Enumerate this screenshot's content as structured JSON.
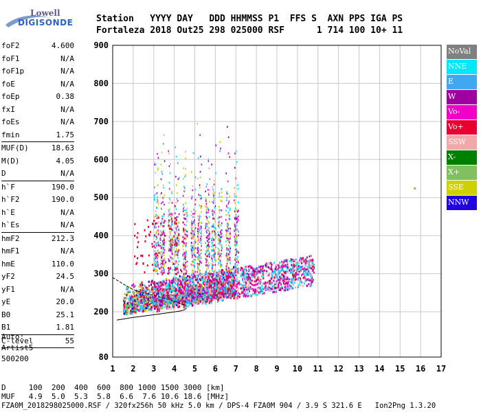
{
  "logo": {
    "line1": "Lowell",
    "line2": "DIGISONDE"
  },
  "header": {
    "row1": "Station   YYYY DAY   DDD HHMMSS P1  FFS S  AXN PPS IGA PS",
    "row2": "Fortaleza 2018 Out25 298 025000 RSF      1 714 100 10+ 11"
  },
  "params": [
    {
      "label": "foF2",
      "value": "4.600"
    },
    {
      "label": "foF1",
      "value": "N/A"
    },
    {
      "label": "foF1p",
      "value": "N/A"
    },
    {
      "label": "foE",
      "value": "N/A"
    },
    {
      "label": "foEp",
      "value": "0.38"
    },
    {
      "label": "fxI",
      "value": "N/A"
    },
    {
      "label": "foEs",
      "value": "N/A"
    },
    {
      "label": "fmin",
      "value": "1.75",
      "sep": true
    },
    {
      "label": "MUF(D)",
      "value": "18.63"
    },
    {
      "label": "M(D)",
      "value": "4.05"
    },
    {
      "label": "D",
      "value": "N/A",
      "sep": true
    },
    {
      "label": "h`F",
      "value": "190.0"
    },
    {
      "label": "h`F2",
      "value": "190.0"
    },
    {
      "label": "h`E",
      "value": "N/A"
    },
    {
      "label": "h`Es",
      "value": "N/A",
      "sep": true
    },
    {
      "label": "hmF2",
      "value": "212.3"
    },
    {
      "label": "hmF1",
      "value": "N/A"
    },
    {
      "label": "hmE",
      "value": "110.0"
    },
    {
      "label": "yF2",
      "value": "24.5"
    },
    {
      "label": "yF1",
      "value": "N/A"
    },
    {
      "label": "yE",
      "value": "20.0"
    },
    {
      "label": "B0",
      "value": "25.1"
    },
    {
      "label": "B1",
      "value": "1.81",
      "sep": true
    },
    {
      "label": "C-level",
      "value": "55",
      "sep": true
    }
  ],
  "autoscaling": {
    "line1": "Auto:",
    "line2": "Artist5",
    "line3": "500200"
  },
  "legend": [
    {
      "label": "NoVal",
      "color": "#808080"
    },
    {
      "label": "NNE",
      "color": "#00e8f8"
    },
    {
      "label": "E",
      "color": "#40a8f0"
    },
    {
      "label": "W",
      "color": "#a000a0"
    },
    {
      "label": "Vo-",
      "color": "#f000c8"
    },
    {
      "label": "Vo+",
      "color": "#e80030"
    },
    {
      "label": "SSW",
      "color": "#f0a8a8"
    },
    {
      "label": "X-",
      "color": "#008000"
    },
    {
      "label": "X+",
      "color": "#80c060"
    },
    {
      "label": "SSE",
      "color": "#d0d000"
    },
    {
      "label": "NNW",
      "color": "#2000e0"
    }
  ],
  "chart_data": {
    "type": "scatter",
    "title": "",
    "xlabel": "",
    "ylabel": "",
    "xlim": [
      1,
      17
    ],
    "ylim": [
      80,
      900
    ],
    "xticks": [
      1,
      2,
      3,
      4,
      5,
      6,
      7,
      8,
      9,
      10,
      11,
      12,
      13,
      14,
      15,
      16,
      17
    ],
    "yticks": [
      80,
      200,
      300,
      400,
      500,
      600,
      700,
      800,
      900
    ],
    "grid": true,
    "scatter_clouds": [
      {
        "name": "dense-low-trace",
        "x_range": [
          1.5,
          7.0
        ],
        "y_range": [
          190,
          300
        ],
        "colors": [
          "#e80030",
          "#f000c8",
          "#d0d000",
          "#40a8f0",
          "#00e8f8",
          "#2000e0",
          "#80c060"
        ]
      },
      {
        "name": "mid-trace",
        "x_range": [
          3.0,
          10.8
        ],
        "y_range": [
          240,
          380
        ],
        "colors": [
          "#e80030",
          "#f000c8",
          "#40a8f0",
          "#00e8f8",
          "#a000a0",
          "#f0a8a8"
        ]
      },
      {
        "name": "upper-columns",
        "x_range": [
          3.0,
          7.2
        ],
        "y_range": [
          300,
          800
        ],
        "colors": [
          "#f000c8",
          "#a000a0",
          "#d0d000",
          "#f0a8a8",
          "#00e8f8",
          "#40a8f0"
        ]
      }
    ],
    "isolated_point": {
      "x": 15.7,
      "y": 525,
      "color": "#80c060"
    },
    "profile_curve": {
      "x": [
        1.2,
        2.0,
        3.0,
        3.8,
        4.3,
        4.5,
        4.6
      ],
      "y": [
        178,
        185,
        192,
        198,
        202,
        205,
        210
      ]
    },
    "profile_curve_upper": {
      "x": [
        1.0,
        1.6,
        2.0,
        2.6,
        3.2,
        4.0,
        4.6
      ],
      "y": [
        290,
        270,
        258,
        248,
        240,
        228,
        215
      ]
    }
  },
  "footer": {
    "line1": "D     100  200  400  600  800 1000 1500 3000 [km]",
    "line2": "MUF   4.9  5.0  5.3  5.8  6.6  7.6 10.6 18.6 [MHz]",
    "line3": "FZA0M_2018298025000.RSF / 320fx256h 50 kHz 5.0 km / DPS-4 FZA0M 904 / 3.9 S 321.6 E   Ion2Png 1.3.20"
  }
}
